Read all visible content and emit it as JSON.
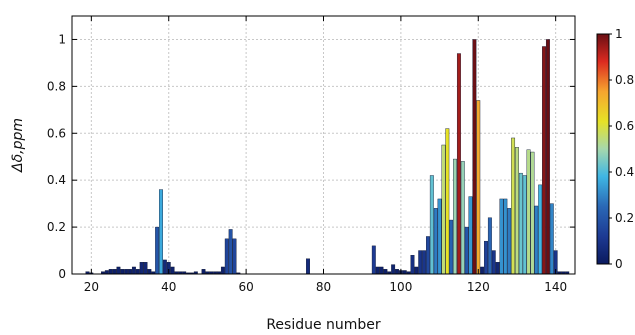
{
  "chart_data": {
    "type": "bar",
    "xlabel": "Residue number",
    "ylabel": "Δδ,ppm",
    "xlim": [
      15,
      145
    ],
    "ylim": [
      0,
      1.1
    ],
    "x_ticks": [
      20,
      40,
      60,
      80,
      100,
      120,
      140
    ],
    "y_ticks": [
      0,
      0.2,
      0.4,
      0.6,
      0.8,
      1
    ],
    "x_tick_labels": [
      "20",
      "40",
      "60",
      "80",
      "100",
      "120",
      "140"
    ],
    "y_tick_labels": [
      "0",
      "0.2",
      "0.4",
      "0.6",
      "0.8",
      "1"
    ],
    "grid": true,
    "colormap": "jet",
    "colorbar": {
      "range": [
        0,
        1
      ],
      "ticks": [
        0,
        0.2,
        0.4,
        0.6,
        0.8,
        1
      ],
      "tick_labels": [
        "0",
        "0.2",
        "0.4",
        "0.6",
        "0.8",
        "1"
      ],
      "placement": "right"
    },
    "x": [
      19,
      20,
      23,
      24,
      25,
      26,
      27,
      28,
      29,
      30,
      31,
      32,
      33,
      34,
      35,
      36,
      37,
      38,
      39,
      40,
      41,
      42,
      43,
      44,
      45,
      46,
      47,
      49,
      50,
      51,
      52,
      53,
      54,
      55,
      56,
      57,
      58,
      76,
      93,
      94,
      95,
      96,
      97,
      98,
      99,
      100,
      101,
      102,
      103,
      104,
      105,
      106,
      107,
      108,
      109,
      110,
      111,
      112,
      113,
      114,
      115,
      116,
      117,
      118,
      119,
      120,
      121,
      122,
      123,
      124,
      125,
      126,
      127,
      128,
      129,
      130,
      131,
      132,
      133,
      134,
      135,
      136,
      137,
      138,
      139,
      140,
      141,
      142,
      143
    ],
    "values": [
      0.01,
      0.005,
      0.01,
      0.015,
      0.02,
      0.02,
      0.03,
      0.02,
      0.02,
      0.02,
      0.03,
      0.02,
      0.05,
      0.05,
      0.02,
      0.01,
      0.2,
      0.36,
      0.06,
      0.05,
      0.03,
      0.01,
      0.01,
      0.01,
      0.005,
      0.005,
      0.01,
      0.02,
      0.01,
      0.01,
      0.01,
      0.01,
      0.03,
      0.15,
      0.19,
      0.15,
      0.005,
      0.065,
      0.12,
      0.03,
      0.03,
      0.02,
      0.01,
      0.04,
      0.02,
      0.015,
      0.015,
      0.01,
      0.08,
      0.03,
      0.1,
      0.1,
      0.16,
      0.42,
      0.28,
      0.32,
      0.55,
      0.62,
      0.23,
      0.49,
      0.94,
      0.48,
      0.2,
      0.33,
      1.0,
      0.74,
      0.03,
      0.14,
      0.24,
      0.1,
      0.05,
      0.32,
      0.32,
      0.28,
      0.58,
      0.54,
      0.43,
      0.42,
      0.53,
      0.52,
      0.29,
      0.38,
      0.97,
      1.0,
      0.3,
      0.1,
      0.01,
      0.01,
      0.01
    ]
  }
}
